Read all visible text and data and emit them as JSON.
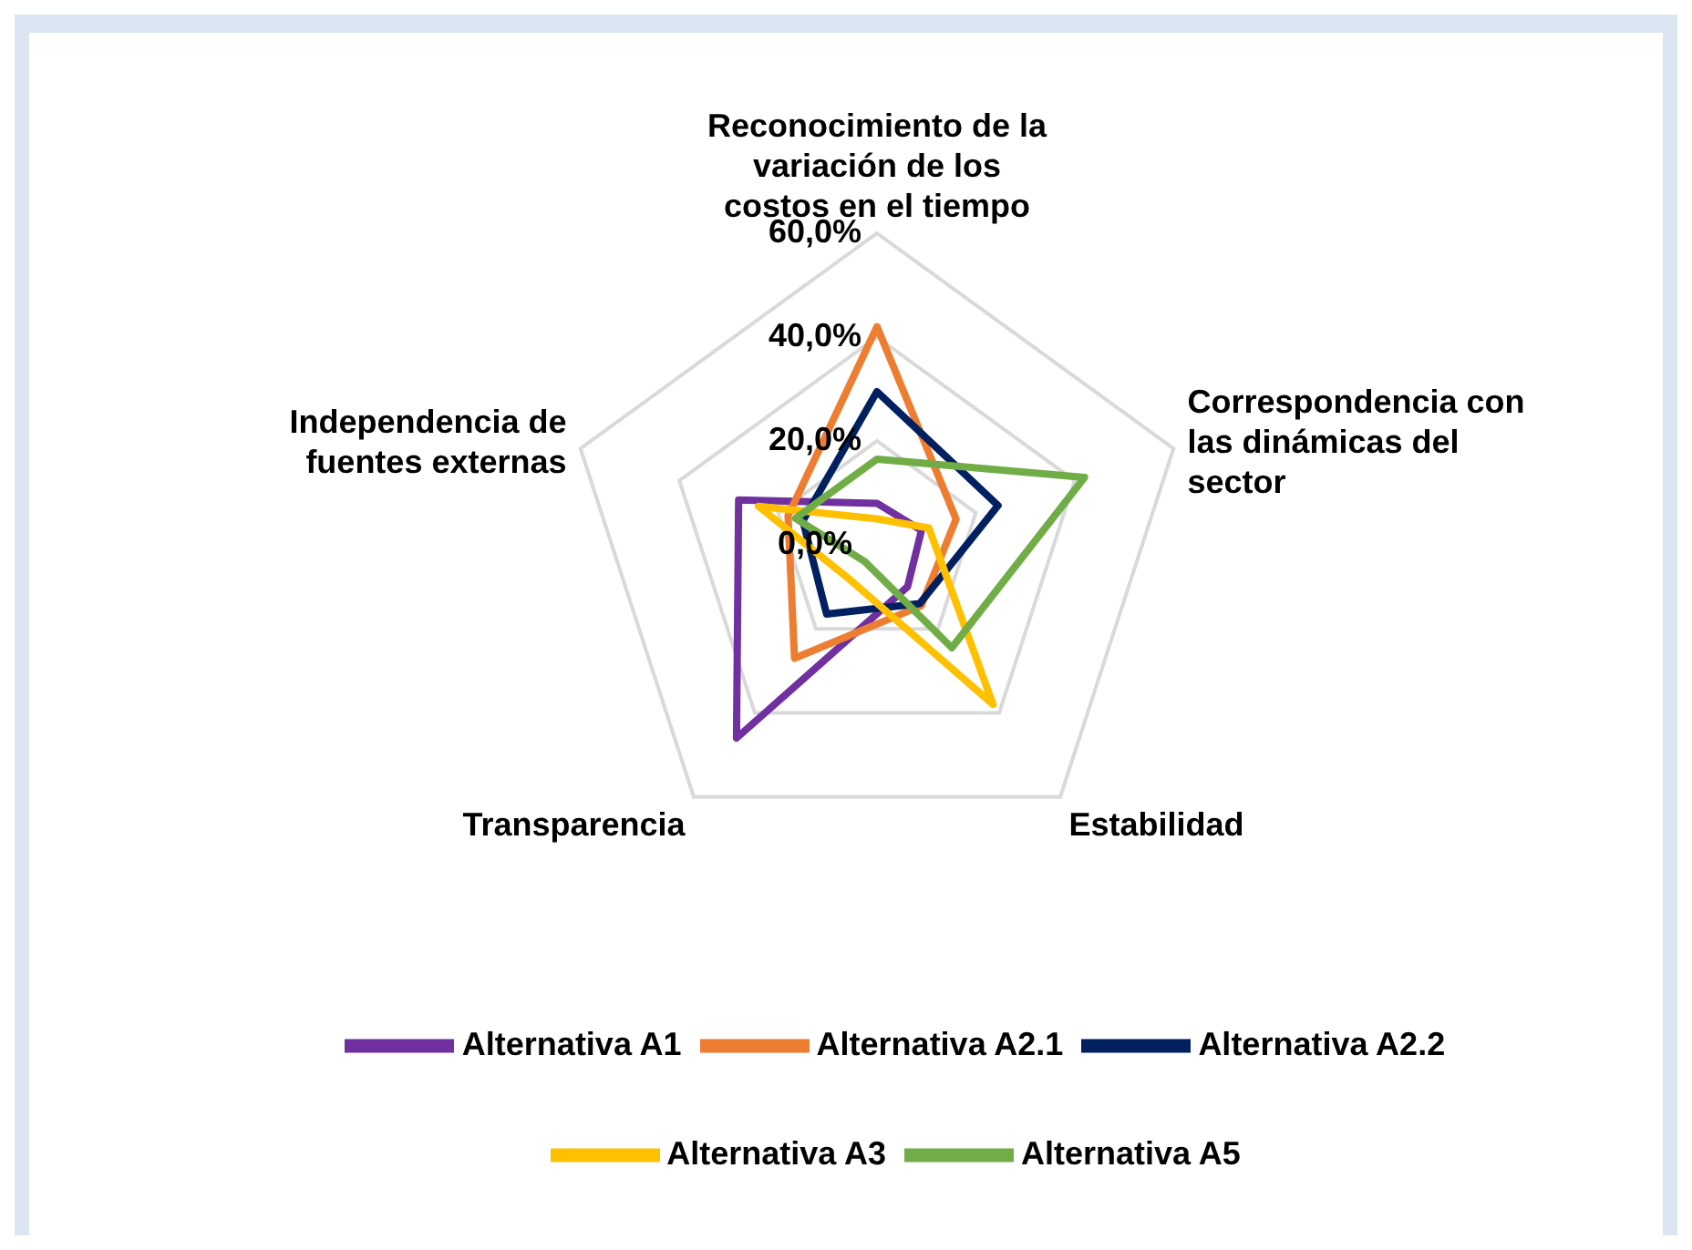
{
  "chart_data": {
    "type": "radar",
    "categories": [
      "Reconocimiento de la variación de los costos en el tiempo",
      "Correspondencia con las dinámicas del sector",
      "Estabilidad",
      "Transparencia",
      "Independencia de fuentes externas"
    ],
    "series": [
      {
        "name": "Alternativa A1",
        "color": "#7030a0",
        "values": [
          8,
          9,
          10,
          46,
          28
        ]
      },
      {
        "name": "Alternativa A2.1",
        "color": "#ed7d31",
        "values": [
          42,
          16,
          14.5,
          27,
          18
        ]
      },
      {
        "name": "Alternativa A2.2",
        "color": "#002060",
        "values": [
          29.5,
          24.5,
          14,
          16.5,
          15
        ]
      },
      {
        "name": "Alternativa A3",
        "color": "#ffc000",
        "values": [
          5,
          10.5,
          38,
          8.5,
          24
        ]
      },
      {
        "name": "Alternativa A5",
        "color": "#70ad47",
        "values": [
          16.5,
          42,
          24.5,
          4,
          16.5
        ]
      }
    ],
    "ylim": [
      0,
      60
    ],
    "yticks": [
      {
        "value": 0,
        "label": "0,0%"
      },
      {
        "value": 20,
        "label": "20,0%"
      },
      {
        "value": 40,
        "label": "40,0%"
      },
      {
        "value": 60,
        "label": "60,0%"
      }
    ],
    "grid": true,
    "legend": "bottom",
    "marker": "none",
    "line_style": "solid"
  }
}
